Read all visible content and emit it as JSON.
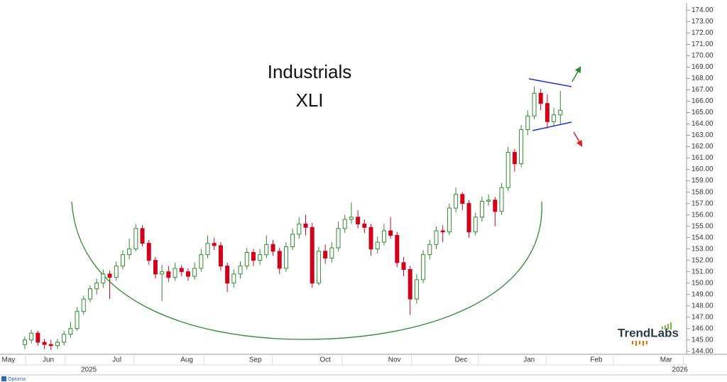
{
  "chart_data": {
    "type": "candlestick",
    "title": "Industrials",
    "subtitle": "XLI",
    "up_color": "#2e8b2e",
    "down_color": "#d0021b",
    "grid": false,
    "watermark": "TrendLabs",
    "source": "Optuma",
    "ylim": [
      143.8,
      174.4
    ],
    "yticks": [
      {
        "value": 144,
        "label": "144.00"
      },
      {
        "value": 145,
        "label": "145.00"
      },
      {
        "value": 146,
        "label": "146.00"
      },
      {
        "value": 147,
        "label": "147.00"
      },
      {
        "value": 148,
        "label": "148.00"
      },
      {
        "value": 149,
        "label": "149.00"
      },
      {
        "value": 150,
        "label": "150.00"
      },
      {
        "value": 151,
        "label": "151.00"
      },
      {
        "value": 152,
        "label": "152.00"
      },
      {
        "value": 153,
        "label": "153.00"
      },
      {
        "value": 154,
        "label": "154.00"
      },
      {
        "value": 155,
        "label": "155.00"
      },
      {
        "value": 156,
        "label": "156.00"
      },
      {
        "value": 157,
        "label": "157.00"
      },
      {
        "value": 158,
        "label": "158.00"
      },
      {
        "value": 159,
        "label": "159.00"
      },
      {
        "value": 160,
        "label": "160.00"
      },
      {
        "value": 161,
        "label": "161.00"
      },
      {
        "value": 162,
        "label": "162.00"
      },
      {
        "value": 163,
        "label": "163.00"
      },
      {
        "value": 164,
        "label": "164.00"
      },
      {
        "value": 165,
        "label": "165.00"
      },
      {
        "value": 166,
        "label": "166.00"
      },
      {
        "value": 167,
        "label": "167.00"
      },
      {
        "value": 168,
        "label": "168.00"
      },
      {
        "value": 169,
        "label": "169.00"
      },
      {
        "value": 170,
        "label": "170.00"
      },
      {
        "value": 171,
        "label": "171.00"
      },
      {
        "value": 172,
        "label": "172.00"
      },
      {
        "value": 173,
        "label": "173.00"
      },
      {
        "value": 174,
        "label": "174.00"
      }
    ],
    "xlim": [
      -3.8,
      101.1
    ],
    "xticks": [
      {
        "value": -2.5,
        "label": "May"
      },
      {
        "value": 3.6,
        "label": "Jun"
      },
      {
        "value": 14.1,
        "label": "Jul"
      },
      {
        "value": 24.8,
        "label": "Aug"
      },
      {
        "value": 35.3,
        "label": "Sep"
      },
      {
        "value": 46,
        "label": "Oct"
      },
      {
        "value": 56.6,
        "label": "Nov"
      },
      {
        "value": 66.8,
        "label": "Dec"
      },
      {
        "value": 77.2,
        "label": "Jan"
      },
      {
        "value": 87.5,
        "label": "Feb"
      },
      {
        "value": 98.2,
        "label": "Mar"
      }
    ],
    "year_ticks": [
      {
        "value": 9.8,
        "label": "2025"
      },
      {
        "value": 100.3,
        "label": "2026"
      }
    ],
    "ohlc": [
      [
        144.6,
        145.3,
        144.2,
        145.0
      ],
      [
        145.0,
        145.9,
        144.7,
        145.6
      ],
      [
        145.6,
        145.8,
        144.5,
        144.8
      ],
      [
        144.8,
        145.1,
        144.2,
        144.6
      ],
      [
        144.6,
        145.0,
        144.1,
        144.5
      ],
      [
        144.5,
        145.1,
        144.2,
        144.8
      ],
      [
        144.8,
        145.8,
        144.5,
        145.5
      ],
      [
        145.5,
        146.6,
        145.2,
        146.0
      ],
      [
        146.0,
        147.9,
        145.8,
        147.5
      ],
      [
        147.5,
        148.9,
        147.2,
        148.6
      ],
      [
        148.6,
        149.8,
        148.3,
        149.5
      ],
      [
        149.5,
        150.4,
        149.0,
        150.0
      ],
      [
        150.0,
        151.2,
        149.6,
        150.8
      ],
      [
        150.8,
        151.1,
        148.6,
        150.5
      ],
      [
        150.5,
        151.9,
        150.2,
        151.5
      ],
      [
        151.5,
        152.9,
        151.2,
        152.5
      ],
      [
        152.5,
        153.9,
        152.1,
        153.0
      ],
      [
        153.0,
        155.2,
        152.8,
        154.8
      ],
      [
        154.8,
        155.1,
        153.2,
        153.5
      ],
      [
        153.5,
        153.8,
        151.6,
        152.0
      ],
      [
        152.0,
        152.3,
        150.4,
        150.8
      ],
      [
        150.8,
        151.6,
        148.4,
        151.0
      ],
      [
        151.0,
        151.5,
        150.1,
        150.5
      ],
      [
        150.5,
        151.8,
        150.2,
        151.3
      ],
      [
        151.3,
        151.6,
        150.6,
        151.0
      ],
      [
        151.0,
        151.3,
        150.2,
        150.6
      ],
      [
        150.6,
        151.8,
        150.3,
        151.3
      ],
      [
        151.3,
        153.0,
        151.0,
        152.5
      ],
      [
        152.5,
        154.2,
        152.2,
        153.5
      ],
      [
        153.5,
        154.0,
        152.9,
        153.3
      ],
      [
        153.3,
        153.6,
        151.1,
        151.5
      ],
      [
        151.5,
        151.8,
        149.2,
        150.0
      ],
      [
        150.0,
        151.2,
        149.6,
        150.8
      ],
      [
        150.8,
        151.9,
        150.4,
        151.5
      ],
      [
        151.5,
        153.1,
        151.2,
        152.7
      ],
      [
        152.7,
        153.0,
        151.5,
        152.0
      ],
      [
        152.0,
        153.0,
        151.6,
        152.5
      ],
      [
        152.5,
        154.2,
        152.2,
        153.4
      ],
      [
        153.4,
        153.8,
        152.4,
        152.8
      ],
      [
        152.8,
        153.1,
        150.8,
        151.3
      ],
      [
        151.3,
        153.6,
        151.0,
        153.2
      ],
      [
        153.2,
        154.8,
        152.9,
        154.3
      ],
      [
        154.3,
        155.8,
        153.9,
        155.2
      ],
      [
        155.2,
        156.0,
        154.2,
        154.9
      ],
      [
        154.9,
        155.3,
        149.6,
        150.0
      ],
      [
        150.0,
        153.2,
        149.8,
        152.8
      ],
      [
        152.8,
        153.4,
        151.7,
        152.2
      ],
      [
        152.2,
        153.6,
        151.8,
        153.1
      ],
      [
        153.1,
        155.4,
        152.8,
        154.8
      ],
      [
        154.8,
        156.0,
        154.4,
        155.6
      ],
      [
        155.6,
        157.1,
        155.2,
        155.8
      ],
      [
        155.8,
        156.4,
        154.8,
        155.2
      ],
      [
        155.2,
        155.6,
        154.4,
        154.9
      ],
      [
        154.9,
        155.2,
        152.4,
        153.0
      ],
      [
        153.0,
        154.1,
        152.6,
        153.6
      ],
      [
        153.6,
        155.2,
        153.3,
        154.6
      ],
      [
        154.6,
        155.8,
        153.9,
        154.2
      ],
      [
        154.2,
        154.5,
        151.4,
        151.8
      ],
      [
        151.8,
        152.3,
        150.6,
        151.2
      ],
      [
        151.2,
        151.5,
        147.2,
        148.6
      ],
      [
        148.6,
        150.8,
        148.2,
        150.3
      ],
      [
        150.3,
        152.9,
        150.0,
        152.5
      ],
      [
        152.5,
        153.8,
        152.1,
        153.4
      ],
      [
        153.4,
        155.0,
        153.0,
        154.6
      ],
      [
        154.6,
        155.1,
        153.6,
        154.5
      ],
      [
        154.5,
        157.0,
        154.2,
        156.6
      ],
      [
        156.6,
        158.4,
        156.2,
        157.8
      ],
      [
        157.8,
        158.0,
        156.4,
        157.0
      ],
      [
        157.0,
        157.3,
        154.0,
        154.5
      ],
      [
        154.5,
        156.2,
        154.2,
        155.8
      ],
      [
        155.8,
        157.6,
        155.4,
        157.2
      ],
      [
        157.2,
        157.8,
        156.8,
        157.3
      ],
      [
        157.3,
        157.6,
        155.0,
        156.3
      ],
      [
        156.3,
        158.8,
        156.0,
        158.4
      ],
      [
        158.4,
        162.0,
        158.1,
        161.5
      ],
      [
        161.5,
        161.8,
        159.8,
        160.5
      ],
      [
        160.5,
        163.9,
        160.2,
        163.5
      ],
      [
        163.5,
        165.2,
        163.0,
        164.7
      ],
      [
        164.7,
        167.3,
        164.4,
        166.7
      ],
      [
        166.7,
        167.1,
        165.2,
        165.8
      ],
      [
        165.8,
        166.6,
        163.6,
        164.2
      ],
      [
        164.2,
        165.4,
        163.8,
        164.8
      ],
      [
        164.8,
        166.9,
        164.0,
        165.2
      ]
    ]
  }
}
